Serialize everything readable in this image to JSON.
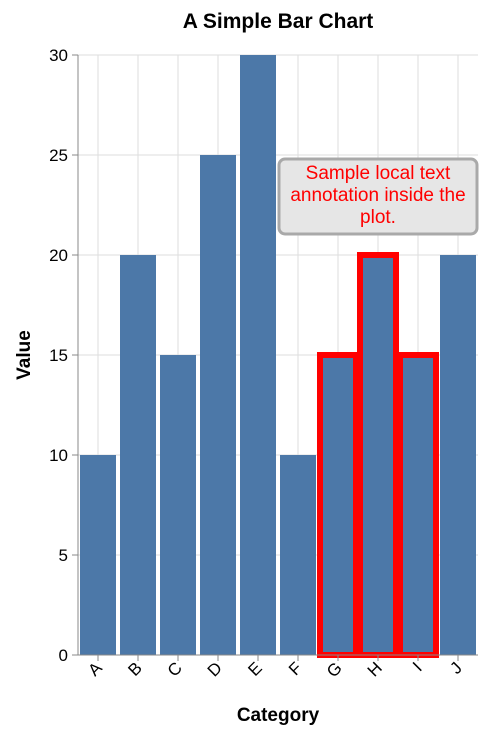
{
  "chart_data": {
    "type": "bar",
    "title": "A Simple Bar Chart",
    "xlabel": "Category",
    "ylabel": "Value",
    "categories": [
      "A",
      "B",
      "C",
      "D",
      "E",
      "F",
      "G",
      "H",
      "I",
      "J"
    ],
    "values": [
      10,
      20,
      15,
      25,
      30,
      10,
      15,
      20,
      15,
      20
    ],
    "ylim": [
      0,
      30
    ],
    "yticks": [
      0,
      5,
      10,
      15,
      20,
      25,
      30
    ],
    "grid": true,
    "highlighted_categories": [
      "G",
      "H",
      "I"
    ],
    "annotation": "Sample local text annotation inside the plot.",
    "colors": {
      "bar": "#4c78a8",
      "highlight_stroke": "#ff0000",
      "annotation_text": "#ff0000",
      "annotation_fill": "#e6e6e6",
      "annotation_stroke": "#a9a9a9"
    }
  }
}
